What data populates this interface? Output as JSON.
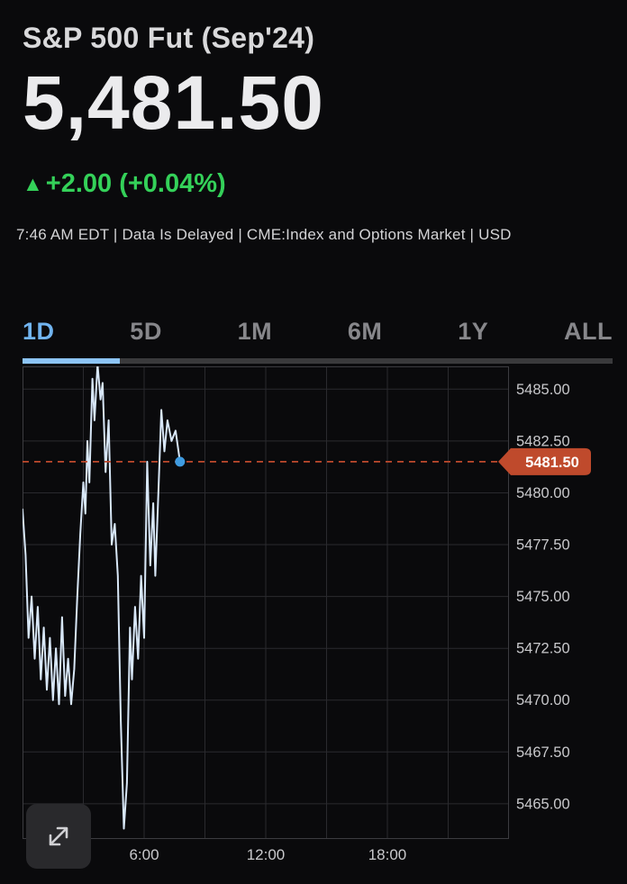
{
  "header": {
    "title": "S&P 500 Fut (Sep'24)",
    "price": "5,481.50",
    "change": "+2.00 (+0.04%)",
    "change_direction": "up",
    "meta": "7:46 AM EDT | Data Is Delayed | CME:Index and Options Market | USD"
  },
  "icons": {
    "up_triangle": "▲",
    "expand": "expand-arrows"
  },
  "colors": {
    "accent_blue": "#71b4f0",
    "up_green": "#34d159",
    "price_badge_red": "#bf4a2c"
  },
  "tabs": [
    {
      "label": "1D",
      "active": true
    },
    {
      "label": "5D",
      "active": false
    },
    {
      "label": "1M",
      "active": false
    },
    {
      "label": "6M",
      "active": false
    },
    {
      "label": "1Y",
      "active": false
    },
    {
      "label": "ALL",
      "active": false
    }
  ],
  "chart_data": {
    "type": "line",
    "title": "S&P 500 Fut (Sep'24) 1D intraday",
    "x_unit": "hours",
    "x_range": [
      0,
      24
    ],
    "x_grid_interval": 3,
    "x_ticks": [
      {
        "t": 6,
        "label": "6:00"
      },
      {
        "t": 12,
        "label": "12:00"
      },
      {
        "t": 18,
        "label": "18:00"
      }
    ],
    "y_range": [
      5463.3,
      5486.1
    ],
    "y_ticks": [
      5485.0,
      5482.5,
      5480.0,
      5477.5,
      5475.0,
      5472.5,
      5470.0,
      5467.5,
      5465.0
    ],
    "y_tick_labels": [
      "5485.00",
      "5482.50",
      "5480.00",
      "5477.50",
      "5475.00",
      "5472.50",
      "5470.00",
      "5467.50",
      "5465.00"
    ],
    "current_price": 5481.5,
    "current_price_label": "5481.50",
    "legend": "none",
    "grid": true,
    "series": [
      {
        "name": "S&P 500 Fut (Sep'24)",
        "points": [
          [
            0.0,
            5479.2
          ],
          [
            0.15,
            5477.0
          ],
          [
            0.3,
            5473.0
          ],
          [
            0.45,
            5475.0
          ],
          [
            0.6,
            5472.0
          ],
          [
            0.75,
            5474.5
          ],
          [
            0.9,
            5471.0
          ],
          [
            1.05,
            5473.5
          ],
          [
            1.2,
            5470.5
          ],
          [
            1.35,
            5473.0
          ],
          [
            1.5,
            5470.0
          ],
          [
            1.65,
            5472.5
          ],
          [
            1.8,
            5469.8
          ],
          [
            1.95,
            5474.0
          ],
          [
            2.1,
            5470.2
          ],
          [
            2.25,
            5472.0
          ],
          [
            2.4,
            5469.8
          ],
          [
            2.55,
            5471.5
          ],
          [
            2.7,
            5475.0
          ],
          [
            2.85,
            5478.0
          ],
          [
            3.0,
            5480.5
          ],
          [
            3.1,
            5479.0
          ],
          [
            3.2,
            5482.5
          ],
          [
            3.3,
            5480.5
          ],
          [
            3.45,
            5485.5
          ],
          [
            3.55,
            5483.5
          ],
          [
            3.7,
            5486.2
          ],
          [
            3.85,
            5484.5
          ],
          [
            3.95,
            5485.3
          ],
          [
            4.1,
            5481.0
          ],
          [
            4.25,
            5483.5
          ],
          [
            4.4,
            5477.5
          ],
          [
            4.55,
            5478.5
          ],
          [
            4.7,
            5476.0
          ],
          [
            4.85,
            5469.0
          ],
          [
            5.0,
            5463.8
          ],
          [
            5.15,
            5466.0
          ],
          [
            5.3,
            5473.5
          ],
          [
            5.4,
            5471.0
          ],
          [
            5.55,
            5474.5
          ],
          [
            5.7,
            5472.0
          ],
          [
            5.85,
            5476.0
          ],
          [
            6.0,
            5473.0
          ],
          [
            6.15,
            5481.5
          ],
          [
            6.3,
            5476.5
          ],
          [
            6.45,
            5479.5
          ],
          [
            6.55,
            5476.0
          ],
          [
            6.7,
            5480.0
          ],
          [
            6.85,
            5484.0
          ],
          [
            7.0,
            5482.0
          ],
          [
            7.15,
            5483.5
          ],
          [
            7.35,
            5482.5
          ],
          [
            7.55,
            5483.0
          ],
          [
            7.77,
            5481.5
          ]
        ]
      }
    ],
    "colors": {
      "line": "#d8e7f7",
      "dot": "#3f9be0",
      "price_line": "#bf4a2c",
      "badge_bg": "#bf4a2c",
      "badge_text": "#ffffff",
      "grid": "#2a2a2e",
      "frame": "#3c3c40",
      "axis_text": "#c9c9cc"
    }
  }
}
